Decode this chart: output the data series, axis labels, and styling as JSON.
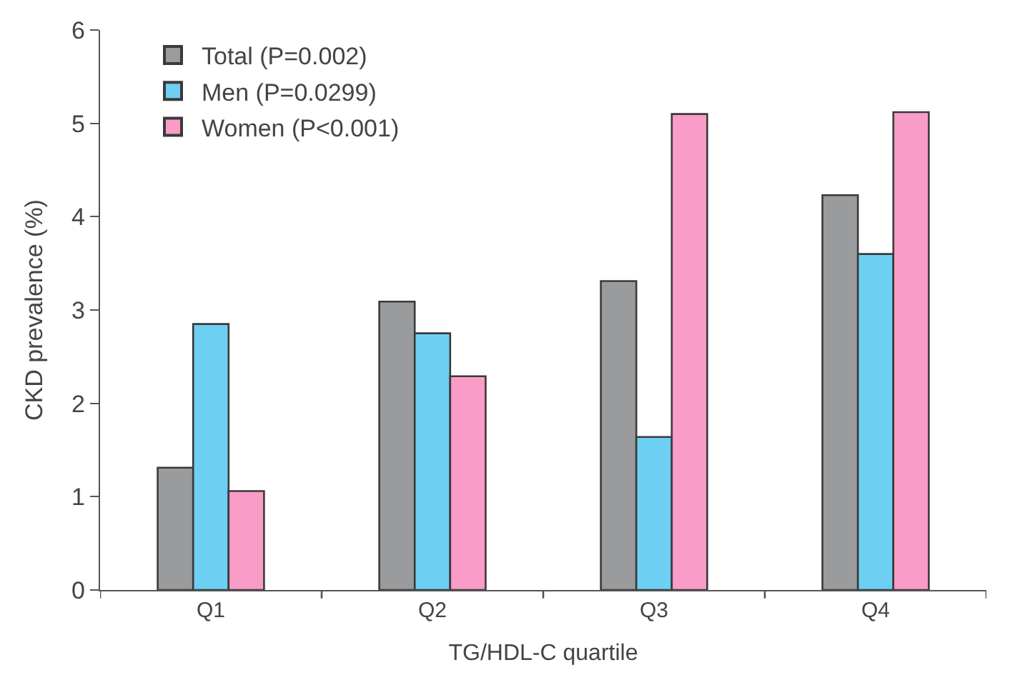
{
  "chart_data": {
    "type": "bar",
    "xlabel": "TG/HDL-C quartile",
    "ylabel": "CKD prevalence (%)",
    "categories": [
      "Q1",
      "Q2",
      "Q3",
      "Q4"
    ],
    "series": [
      {
        "name": "Total (P=0.002)",
        "color": "#9a9b9d",
        "values": [
          1.31,
          3.09,
          3.31,
          4.23
        ]
      },
      {
        "name": "Men (P=0.0299)",
        "color": "#6dcff2",
        "values": [
          2.85,
          2.75,
          1.64,
          3.6
        ]
      },
      {
        "name": "Women (P<0.001)",
        "color": "#f99cc8",
        "values": [
          1.06,
          2.29,
          5.1,
          5.12
        ]
      }
    ],
    "ylim": [
      0,
      6
    ],
    "yticks": [
      0,
      1,
      2,
      3,
      4,
      5,
      6
    ],
    "legend": "top left"
  }
}
